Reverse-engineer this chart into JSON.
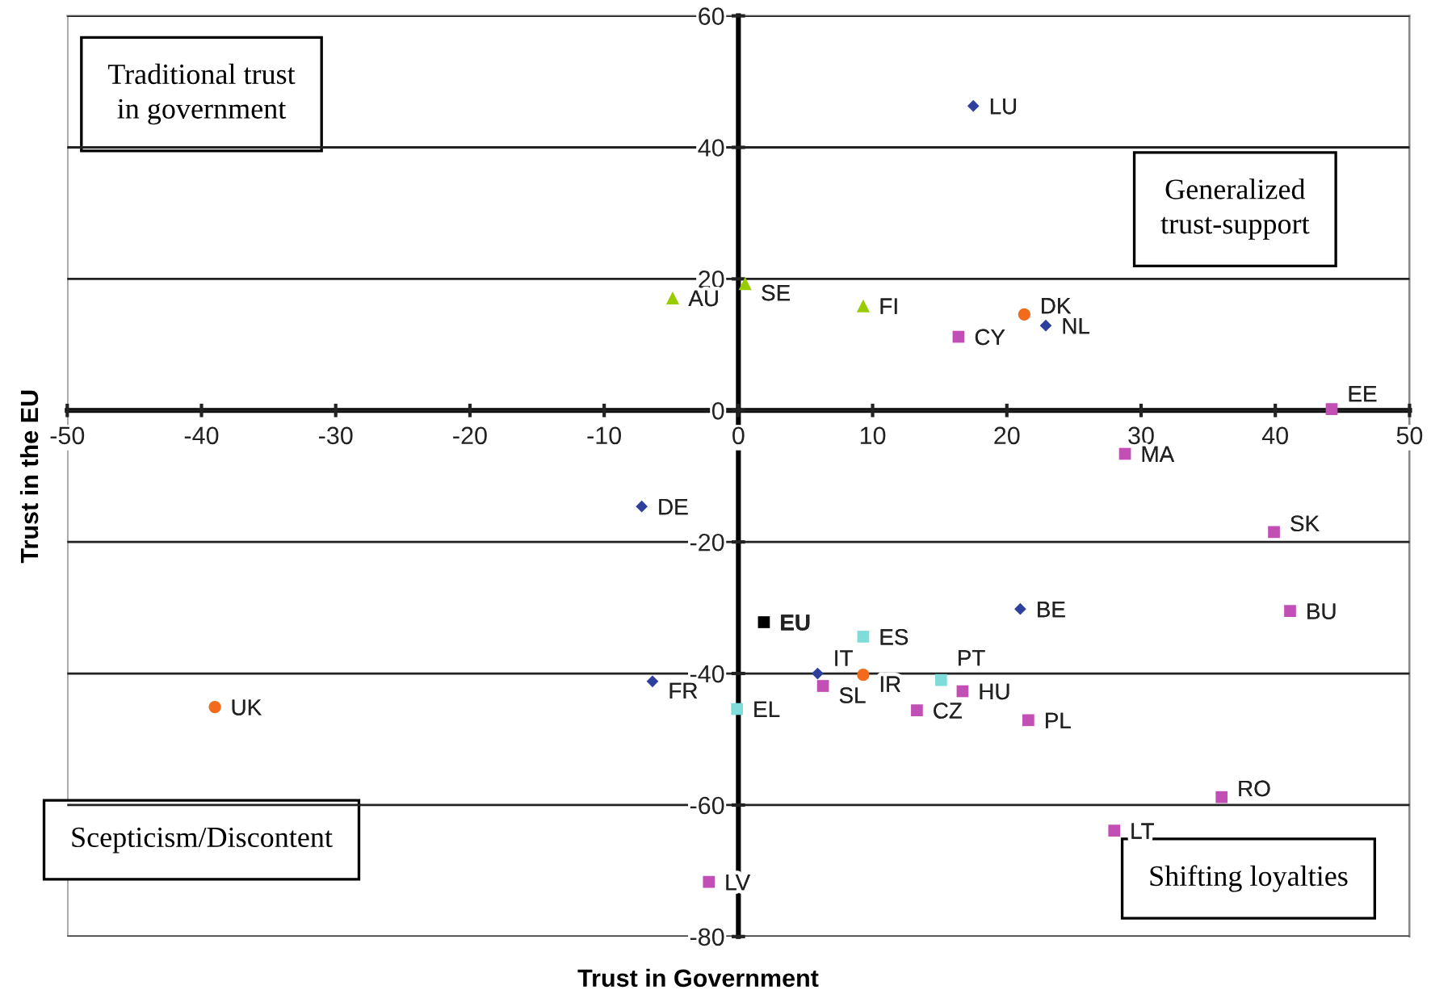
{
  "chart_data": {
    "type": "scatter",
    "xlabel": "Trust in Government",
    "ylabel": "Trust in the EU",
    "xlim": [
      -50,
      50
    ],
    "ylim": [
      -80,
      60
    ],
    "xticks": [
      -50,
      -40,
      -30,
      -20,
      -10,
      0,
      10,
      20,
      30,
      40,
      50
    ],
    "yticks": [
      -80,
      -60,
      -40,
      -20,
      0,
      20,
      40,
      60
    ],
    "grid": "y",
    "legend": false,
    "series": [
      {
        "color": "#2e3f9e",
        "marker": "diamond",
        "x": [
          17.5,
          22.9,
          -7.2,
          21.0,
          5.9,
          -6.4
        ],
        "values": [
          46.3,
          12.9,
          -14.6,
          -30.2,
          -40.0,
          -41.2
        ]
      },
      {
        "color": "#99cc00",
        "marker": "triangle",
        "x": [
          -4.9,
          0.5,
          9.3
        ],
        "values": [
          17.1,
          19.3,
          15.9
        ]
      },
      {
        "color": "#f26a1b",
        "marker": "circle",
        "x": [
          21.3,
          -39.0,
          9.3
        ],
        "values": [
          14.6,
          -45.1,
          -40.2
        ]
      },
      {
        "color": "#c24fb5",
        "marker": "square",
        "x": [
          16.4,
          44.2,
          28.8,
          39.9,
          41.1,
          16.7,
          21.6,
          13.3,
          6.3,
          36.0,
          28.0,
          -2.2
        ],
        "values": [
          11.2,
          0.2,
          -6.6,
          -18.5,
          -30.5,
          -42.7,
          -47.1,
          -45.6,
          -41.9,
          -58.8,
          -63.9,
          -71.7
        ]
      },
      {
        "color": "#80dcd8",
        "marker": "square",
        "x": [
          9.3,
          15.1,
          -0.1
        ],
        "values": [
          -34.4,
          -41.0,
          -45.4
        ]
      },
      {
        "color": "#000000",
        "marker": "square",
        "x": [
          1.9
        ],
        "values": [
          -32.2
        ]
      }
    ],
    "annotations": [
      "Traditional trust\nin government",
      "Generalized\ntrust-support",
      "Scepticism/Discontent",
      "Shifting loyalties",
      {
        "text": "LU",
        "x": 17.5,
        "y": 46.3
      },
      {
        "text": "NL",
        "x": 22.9,
        "y": 12.9
      },
      {
        "text": "DE",
        "x": -7.2,
        "y": -14.6
      },
      {
        "text": "BE",
        "x": 21.0,
        "y": -30.2
      },
      {
        "text": "IT",
        "x": 5.9,
        "y": -40.0
      },
      {
        "text": "FR",
        "x": -6.4,
        "y": -41.2
      },
      {
        "text": "AU",
        "x": -4.9,
        "y": 17.1
      },
      {
        "text": "SE",
        "x": 0.5,
        "y": 19.3
      },
      {
        "text": "FI",
        "x": 9.3,
        "y": 15.9
      },
      {
        "text": "DK",
        "x": 21.3,
        "y": 14.6
      },
      {
        "text": "UK",
        "x": -39.0,
        "y": -45.1
      },
      {
        "text": "IR",
        "x": 9.3,
        "y": -40.2
      },
      {
        "text": "CY",
        "x": 16.4,
        "y": 11.2
      },
      {
        "text": "EE",
        "x": 44.2,
        "y": 0.2
      },
      {
        "text": "MA",
        "x": 28.8,
        "y": -6.6
      },
      {
        "text": "SK",
        "x": 39.9,
        "y": -18.5
      },
      {
        "text": "BU",
        "x": 41.1,
        "y": -30.5
      },
      {
        "text": "HU",
        "x": 16.7,
        "y": -42.7
      },
      {
        "text": "PL",
        "x": 21.6,
        "y": -47.1
      },
      {
        "text": "CZ",
        "x": 13.3,
        "y": -45.6
      },
      {
        "text": "SL",
        "x": 6.3,
        "y": -41.9
      },
      {
        "text": "RO",
        "x": 36.0,
        "y": -58.8
      },
      {
        "text": "LT",
        "x": 28.0,
        "y": -63.9
      },
      {
        "text": "LV",
        "x": -2.2,
        "y": -71.7
      },
      {
        "text": "ES",
        "x": 9.3,
        "y": -34.4
      },
      {
        "text": "PT",
        "x": 15.1,
        "y": -41.0
      },
      {
        "text": "EL",
        "x": -0.1,
        "y": -45.4
      },
      {
        "text": "EU",
        "x": 1.9,
        "y": -32.2
      }
    ]
  }
}
